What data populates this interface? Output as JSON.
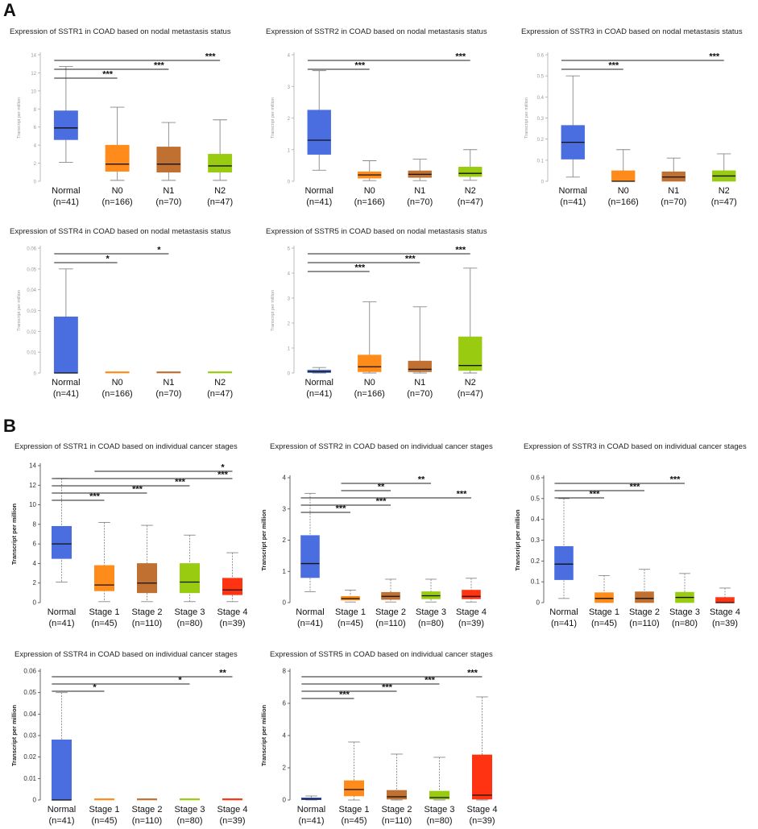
{
  "panels": [
    {
      "label": "A"
    },
    {
      "label": "B"
    }
  ],
  "colors": {
    "normal": "#4a6ee0",
    "n0": "#ff8c1a",
    "n1": "#c07030",
    "n2": "#99cc11",
    "stage4": "#ff3311",
    "line": "#222222",
    "axis": "#999999",
    "tick_text": "#555555"
  },
  "chart_data": [
    {
      "type": "box",
      "panel": "A",
      "title": "Expression of SSTR1 in COAD based on nodal metastasis status",
      "ylabel": "Transcript per million",
      "ylim": [
        0,
        14
      ],
      "yticks": [
        0,
        2,
        4,
        6,
        8,
        10,
        12,
        14
      ],
      "categories": [
        "Normal",
        "N0",
        "N1",
        "N2"
      ],
      "counts": [
        "(n=41)",
        "(n=166)",
        "(n=70)",
        "(n=47)"
      ],
      "box_colors": [
        "#4a6ee0",
        "#ff8c1a",
        "#c07030",
        "#99cc11"
      ],
      "boxes": [
        {
          "min": 2.1,
          "q1": 4.6,
          "median": 5.9,
          "q3": 7.8,
          "max": 12.7
        },
        {
          "min": 0.1,
          "q1": 1.1,
          "median": 1.9,
          "q3": 4.0,
          "max": 8.2
        },
        {
          "min": 0.1,
          "q1": 1.0,
          "median": 1.9,
          "q3": 3.8,
          "max": 6.5
        },
        {
          "min": 0.1,
          "q1": 1.0,
          "median": 1.7,
          "q3": 3.0,
          "max": 6.8
        }
      ],
      "significance": [
        {
          "from": 0,
          "to": 1,
          "label": "***"
        },
        {
          "from": 0,
          "to": 2,
          "label": "***"
        },
        {
          "from": 0,
          "to": 3,
          "label": "***"
        }
      ]
    },
    {
      "type": "box",
      "panel": "A",
      "title": "Expression of SSTR2 in COAD based on nodal metastasis status",
      "ylabel": "Transcript per million",
      "ylim": [
        0,
        4
      ],
      "yticks": [
        0,
        1,
        2,
        3,
        4
      ],
      "categories": [
        "Normal",
        "N0",
        "N1",
        "N2"
      ],
      "counts": [
        "(n=41)",
        "(n=166)",
        "(n=70)",
        "(n=47)"
      ],
      "box_colors": [
        "#4a6ee0",
        "#ff8c1a",
        "#c07030",
        "#99cc11"
      ],
      "boxes": [
        {
          "min": 0.35,
          "q1": 0.85,
          "median": 1.3,
          "q3": 2.25,
          "max": 3.5
        },
        {
          "min": 0.02,
          "q1": 0.1,
          "median": 0.2,
          "q3": 0.3,
          "max": 0.65
        },
        {
          "min": 0.02,
          "q1": 0.12,
          "median": 0.22,
          "q3": 0.33,
          "max": 0.7
        },
        {
          "min": 0.03,
          "q1": 0.15,
          "median": 0.25,
          "q3": 0.45,
          "max": 1.0
        }
      ],
      "significance": [
        {
          "from": 0,
          "to": 1,
          "label": "***"
        },
        {
          "from": 0,
          "to": 3,
          "label": "***"
        }
      ]
    },
    {
      "type": "box",
      "panel": "A",
      "title": "Expression of SSTR3 in COAD based on nodal metastasis status",
      "ylabel": "Transcript per million",
      "ylim": [
        0,
        0.6
      ],
      "yticks": [
        0,
        0.1,
        0.2,
        0.3,
        0.4,
        0.5,
        0.6
      ],
      "categories": [
        "Normal",
        "N0",
        "N1",
        "N2"
      ],
      "counts": [
        "(n=41)",
        "(n=166)",
        "(n=70)",
        "(n=47)"
      ],
      "box_colors": [
        "#4a6ee0",
        "#ff8c1a",
        "#c07030",
        "#99cc11"
      ],
      "boxes": [
        {
          "min": 0.02,
          "q1": 0.105,
          "median": 0.185,
          "q3": 0.265,
          "max": 0.5
        },
        {
          "min": 0.0,
          "q1": 0.0,
          "median": 0.0,
          "q3": 0.05,
          "max": 0.15
        },
        {
          "min": 0.0,
          "q1": 0.0,
          "median": 0.02,
          "q3": 0.045,
          "max": 0.11
        },
        {
          "min": 0.0,
          "q1": 0.0,
          "median": 0.025,
          "q3": 0.05,
          "max": 0.13
        }
      ],
      "significance": [
        {
          "from": 0,
          "to": 1,
          "label": "***"
        },
        {
          "from": 0,
          "to": 3,
          "label": "***"
        }
      ]
    },
    {
      "type": "box",
      "panel": "A",
      "title": "Expression of SSTR4 in COAD based on nodal metastasis status",
      "ylabel": "Transcript per million",
      "ylim": [
        0,
        0.06
      ],
      "yticks": [
        0,
        0.01,
        0.02,
        0.03,
        0.04,
        0.05,
        0.06
      ],
      "categories": [
        "Normal",
        "N0",
        "N1",
        "N2"
      ],
      "counts": [
        "(n=41)",
        "(n=166)",
        "(n=70)",
        "(n=47)"
      ],
      "box_colors": [
        "#4a6ee0",
        "#ff8c1a",
        "#c07030",
        "#99cc11"
      ],
      "boxes": [
        {
          "min": 0.0,
          "q1": 0.0,
          "median": 0.0,
          "q3": 0.027,
          "max": 0.05
        },
        {
          "min": 0.0,
          "q1": 0.0,
          "median": 0.0,
          "q3": 0.0,
          "max": 0.0
        },
        {
          "min": 0.0,
          "q1": 0.0,
          "median": 0.0,
          "q3": 0.0,
          "max": 0.0
        },
        {
          "min": 0.0,
          "q1": 0.0,
          "median": 0.0,
          "q3": 0.0,
          "max": 0.0
        }
      ],
      "significance": [
        {
          "from": 0,
          "to": 1,
          "label": "*"
        },
        {
          "from": 0,
          "to": 2,
          "label": "*"
        }
      ]
    },
    {
      "type": "box",
      "panel": "A",
      "title": "Expression of SSTR5 in COAD based on nodal metastasis status",
      "ylabel": "Transcript per million",
      "ylim": [
        0,
        5
      ],
      "yticks": [
        0,
        1,
        2,
        3,
        4,
        5
      ],
      "categories": [
        "Normal",
        "N0",
        "N1",
        "N2"
      ],
      "counts": [
        "(n=41)",
        "(n=166)",
        "(n=70)",
        "(n=47)"
      ],
      "box_colors": [
        "#4a6ee0",
        "#ff8c1a",
        "#c07030",
        "#99cc11"
      ],
      "boxes": [
        {
          "min": 0.0,
          "q1": 0.02,
          "median": 0.05,
          "q3": 0.12,
          "max": 0.22
        },
        {
          "min": 0.0,
          "q1": 0.05,
          "median": 0.25,
          "q3": 0.72,
          "max": 2.85
        },
        {
          "min": 0.0,
          "q1": 0.05,
          "median": 0.15,
          "q3": 0.48,
          "max": 2.65
        },
        {
          "min": 0.0,
          "q1": 0.1,
          "median": 0.3,
          "q3": 1.45,
          "max": 4.2
        }
      ],
      "significance": [
        {
          "from": 0,
          "to": 1,
          "label": "***"
        },
        {
          "from": 0,
          "to": 2,
          "label": "***"
        },
        {
          "from": 0,
          "to": 3,
          "label": "***"
        }
      ]
    },
    {
      "type": "box",
      "panel": "B",
      "title": "Expression of SSTR1 in COAD based on individual cancer stages",
      "ylabel": "Transcript per million",
      "ylim": [
        0,
        14
      ],
      "yticks": [
        0,
        2,
        4,
        6,
        8,
        10,
        12,
        14
      ],
      "categories": [
        "Normal",
        "Stage 1",
        "Stage 2",
        "Stage 3",
        "Stage 4"
      ],
      "counts": [
        "(n=41)",
        "(n=45)",
        "(n=110)",
        "(n=80)",
        "(n=39)"
      ],
      "box_colors": [
        "#4a6ee0",
        "#ff8c1a",
        "#c07030",
        "#99cc11",
        "#ff3311"
      ],
      "boxes": [
        {
          "min": 2.1,
          "q1": 4.5,
          "median": 6.0,
          "q3": 7.8,
          "max": 12.7
        },
        {
          "min": 0.1,
          "q1": 1.2,
          "median": 1.8,
          "q3": 3.8,
          "max": 8.2
        },
        {
          "min": 0.1,
          "q1": 1.0,
          "median": 2.0,
          "q3": 4.0,
          "max": 7.9
        },
        {
          "min": 0.1,
          "q1": 1.0,
          "median": 2.1,
          "q3": 4.0,
          "max": 6.9
        },
        {
          "min": 0.1,
          "q1": 0.8,
          "median": 1.3,
          "q3": 2.5,
          "max": 5.1
        }
      ],
      "significance": [
        {
          "from": 0,
          "to": 1,
          "label": "***"
        },
        {
          "from": 0,
          "to": 2,
          "label": "***"
        },
        {
          "from": 0,
          "to": 3,
          "label": "***"
        },
        {
          "from": 0,
          "to": 4,
          "label": "***"
        },
        {
          "from": 1,
          "to": 4,
          "label": "*"
        }
      ]
    },
    {
      "type": "box",
      "panel": "B",
      "title": "Expression of SSTR2 in COAD based on individual cancer stages",
      "ylabel": "Transcript per million",
      "ylim": [
        0,
        4
      ],
      "yticks": [
        0,
        1,
        2,
        3,
        4
      ],
      "categories": [
        "Normal",
        "Stage 1",
        "Stage 2",
        "Stage 3",
        "Stage 4"
      ],
      "counts": [
        "(n=41)",
        "(n=45)",
        "(n=110)",
        "(n=80)",
        "(n=39)"
      ],
      "box_colors": [
        "#4a6ee0",
        "#ff8c1a",
        "#c07030",
        "#99cc11",
        "#ff3311"
      ],
      "boxes": [
        {
          "min": 0.35,
          "q1": 0.8,
          "median": 1.25,
          "q3": 2.15,
          "max": 3.5
        },
        {
          "min": 0.02,
          "q1": 0.08,
          "median": 0.13,
          "q3": 0.2,
          "max": 0.4
        },
        {
          "min": 0.02,
          "q1": 0.1,
          "median": 0.2,
          "q3": 0.33,
          "max": 0.75
        },
        {
          "min": 0.02,
          "q1": 0.12,
          "median": 0.22,
          "q3": 0.35,
          "max": 0.75
        },
        {
          "min": 0.02,
          "q1": 0.12,
          "median": 0.2,
          "q3": 0.4,
          "max": 0.78
        }
      ],
      "significance": [
        {
          "from": 0,
          "to": 1,
          "label": "***"
        },
        {
          "from": 0,
          "to": 2,
          "label": "***"
        },
        {
          "from": 0,
          "to": 4,
          "label": "***"
        },
        {
          "from": 1,
          "to": 2,
          "label": "**"
        },
        {
          "from": 1,
          "to": 3,
          "label": "**"
        }
      ]
    },
    {
      "type": "box",
      "panel": "B",
      "title": "Expression of SSTR3 in COAD based on individual cancer stages",
      "ylabel": "Transcript per million",
      "ylim": [
        0,
        0.6
      ],
      "yticks": [
        0,
        0.1,
        0.2,
        0.3,
        0.4,
        0.5,
        0.6
      ],
      "categories": [
        "Normal",
        "Stage 1",
        "Stage 2",
        "Stage 3",
        "Stage 4"
      ],
      "counts": [
        "(n=41)",
        "(n=45)",
        "(n=110)",
        "(n=80)",
        "(n=39)"
      ],
      "box_colors": [
        "#4a6ee0",
        "#ff8c1a",
        "#c07030",
        "#99cc11",
        "#ff3311"
      ],
      "boxes": [
        {
          "min": 0.02,
          "q1": 0.11,
          "median": 0.185,
          "q3": 0.27,
          "max": 0.5
        },
        {
          "min": 0.0,
          "q1": 0.0,
          "median": 0.02,
          "q3": 0.048,
          "max": 0.13
        },
        {
          "min": 0.0,
          "q1": 0.0,
          "median": 0.02,
          "q3": 0.052,
          "max": 0.16
        },
        {
          "min": 0.0,
          "q1": 0.0,
          "median": 0.025,
          "q3": 0.05,
          "max": 0.14
        },
        {
          "min": 0.0,
          "q1": 0.0,
          "median": 0.0,
          "q3": 0.025,
          "max": 0.07
        }
      ],
      "significance": [
        {
          "from": 0,
          "to": 1,
          "label": "***"
        },
        {
          "from": 0,
          "to": 2,
          "label": "***"
        },
        {
          "from": 0,
          "to": 3,
          "label": "***"
        }
      ]
    },
    {
      "type": "box",
      "panel": "B",
      "title": "Expression of SSTR4 in COAD based on individual cancer stages",
      "ylabel": "Transcript per million",
      "ylim": [
        0,
        0.06
      ],
      "yticks": [
        0,
        0.01,
        0.02,
        0.03,
        0.04,
        0.05,
        0.06
      ],
      "categories": [
        "Normal",
        "Stage 1",
        "Stage 2",
        "Stage 3",
        "Stage 4"
      ],
      "counts": [
        "(n=41)",
        "(n=45)",
        "(n=110)",
        "(n=80)",
        "(n=39)"
      ],
      "box_colors": [
        "#4a6ee0",
        "#ff8c1a",
        "#c07030",
        "#99cc11",
        "#ff3311"
      ],
      "boxes": [
        {
          "min": 0.0,
          "q1": 0.0,
          "median": 0.0,
          "q3": 0.028,
          "max": 0.05
        },
        {
          "min": 0.0,
          "q1": 0.0,
          "median": 0.0,
          "q3": 0.0,
          "max": 0.0
        },
        {
          "min": 0.0,
          "q1": 0.0,
          "median": 0.0,
          "q3": 0.0,
          "max": 0.0
        },
        {
          "min": 0.0,
          "q1": 0.0,
          "median": 0.0,
          "q3": 0.0,
          "max": 0.0
        },
        {
          "min": 0.0,
          "q1": 0.0,
          "median": 0.0,
          "q3": 0.0,
          "max": 0.0
        }
      ],
      "significance": [
        {
          "from": 0,
          "to": 1,
          "label": "*"
        },
        {
          "from": 0,
          "to": 3,
          "label": "*"
        },
        {
          "from": 0,
          "to": 4,
          "label": "**"
        }
      ]
    },
    {
      "type": "box",
      "panel": "B",
      "title": "Expression of SSTR5 in COAD based on individual cancer stages",
      "ylabel": "Transcript per million",
      "ylim": [
        0,
        8
      ],
      "yticks": [
        0,
        2,
        4,
        6,
        8
      ],
      "categories": [
        "Normal",
        "Stage 1",
        "Stage 2",
        "Stage 3",
        "Stage 4"
      ],
      "counts": [
        "(n=41)",
        "(n=45)",
        "(n=110)",
        "(n=80)",
        "(n=39)"
      ],
      "box_colors": [
        "#4a6ee0",
        "#ff8c1a",
        "#c07030",
        "#99cc11",
        "#ff3311"
      ],
      "boxes": [
        {
          "min": 0.0,
          "q1": 0.02,
          "median": 0.06,
          "q3": 0.14,
          "max": 0.25
        },
        {
          "min": 0.0,
          "q1": 0.25,
          "median": 0.65,
          "q3": 1.2,
          "max": 3.6
        },
        {
          "min": 0.0,
          "q1": 0.05,
          "median": 0.2,
          "q3": 0.6,
          "max": 2.85
        },
        {
          "min": 0.0,
          "q1": 0.05,
          "median": 0.15,
          "q3": 0.55,
          "max": 2.65
        },
        {
          "min": 0.0,
          "q1": 0.05,
          "median": 0.3,
          "q3": 2.8,
          "max": 6.4
        }
      ],
      "significance": [
        {
          "from": 0,
          "to": 1,
          "label": "***"
        },
        {
          "from": 0,
          "to": 2,
          "label": "***"
        },
        {
          "from": 0,
          "to": 3,
          "label": "***"
        },
        {
          "from": 0,
          "to": 4,
          "label": "***"
        }
      ]
    }
  ]
}
